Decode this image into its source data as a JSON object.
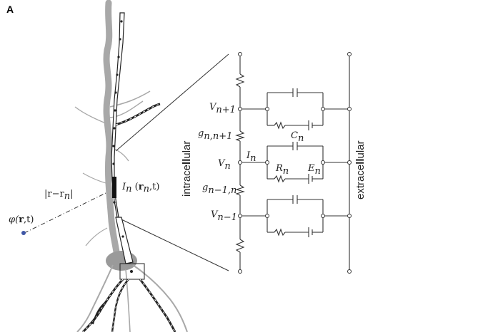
{
  "panel_label": "A",
  "neuron_labels": {
    "current": "I",
    "current_sub": "n",
    "current_args_open": " (",
    "current_args_r": "r",
    "current_args_rsub": "n",
    "current_args_t": ",t)",
    "distance": "|r−r",
    "distance_sub": "n",
    "distance_close": "|",
    "potential_phi": "φ(",
    "potential_r": "r",
    "potential_t": ",t)"
  },
  "circuit_labels": {
    "v_upper": "V",
    "v_upper_sub": "n+1",
    "g_upper": "g",
    "g_upper_sub": "n,n+1",
    "v_mid": "V",
    "v_mid_sub": "n",
    "g_lower": "g",
    "g_lower_sub": "n−1,n",
    "v_lower": "V",
    "v_lower_sub": "n−1",
    "i_n": "I",
    "i_n_sub": "n",
    "c_n": "C",
    "c_n_sub": "n",
    "r_n": "R",
    "r_n_sub": "n",
    "e_n": "E",
    "e_n_sub": "n"
  },
  "side_labels": {
    "intracellular_left": "intrace",
    "intracellular_bold": "ll",
    "intracellular_right": "ular",
    "extracellular_left": "extrace",
    "extracellular_bold": "ll",
    "extracellular_right": "ular"
  },
  "colors": {
    "dendrite_gray": "#a8a8a8",
    "soma_gray": "#9a9a9a",
    "electrode_dot": "#3f57a6",
    "wire": "#333333"
  }
}
